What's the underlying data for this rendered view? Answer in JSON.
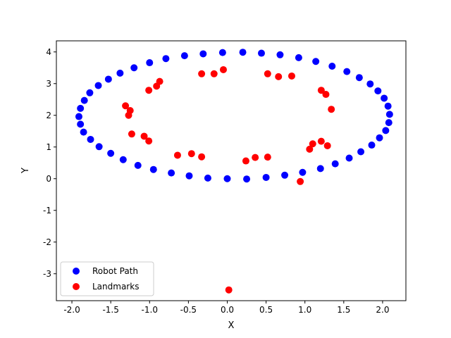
{
  "chart_data": {
    "type": "scatter",
    "title": "",
    "xlabel": "X",
    "ylabel": "Y",
    "xlim": [
      -2.2,
      2.3
    ],
    "ylim": [
      -3.85,
      4.35
    ],
    "xticks": [
      -2.0,
      -1.5,
      -1.0,
      -0.5,
      0.0,
      0.5,
      1.0,
      1.5,
      2.0
    ],
    "yticks": [
      -3,
      -2,
      -1,
      0,
      1,
      2,
      3,
      4
    ],
    "grid": false,
    "legend_position": "lower-left",
    "series": [
      {
        "name": "Robot Path",
        "color": "#0000ff",
        "points": [
          [
            0.0,
            0.0
          ],
          [
            0.25,
            -0.01
          ],
          [
            0.5,
            0.04
          ],
          [
            0.74,
            0.11
          ],
          [
            0.97,
            0.2
          ],
          [
            1.2,
            0.32
          ],
          [
            1.39,
            0.47
          ],
          [
            1.57,
            0.65
          ],
          [
            1.72,
            0.85
          ],
          [
            1.86,
            1.06
          ],
          [
            1.96,
            1.29
          ],
          [
            2.04,
            1.52
          ],
          [
            2.08,
            1.77
          ],
          [
            2.09,
            2.03
          ],
          [
            2.07,
            2.29
          ],
          [
            2.02,
            2.54
          ],
          [
            1.94,
            2.77
          ],
          [
            1.84,
            2.99
          ],
          [
            1.7,
            3.19
          ],
          [
            1.54,
            3.38
          ],
          [
            1.35,
            3.55
          ],
          [
            1.14,
            3.7
          ],
          [
            0.92,
            3.82
          ],
          [
            0.68,
            3.91
          ],
          [
            0.44,
            3.96
          ],
          [
            0.2,
            3.99
          ],
          [
            -0.06,
            3.98
          ],
          [
            -0.31,
            3.94
          ],
          [
            -0.55,
            3.88
          ],
          [
            -0.79,
            3.79
          ],
          [
            -1.0,
            3.66
          ],
          [
            -1.2,
            3.5
          ],
          [
            -1.38,
            3.33
          ],
          [
            -1.53,
            3.14
          ],
          [
            -1.66,
            2.94
          ],
          [
            -1.77,
            2.71
          ],
          [
            -1.84,
            2.47
          ],
          [
            -1.89,
            2.22
          ],
          [
            -1.91,
            1.96
          ],
          [
            -1.89,
            1.72
          ],
          [
            -1.85,
            1.47
          ],
          [
            -1.76,
            1.24
          ],
          [
            -1.65,
            1.01
          ],
          [
            -1.5,
            0.8
          ],
          [
            -1.34,
            0.6
          ],
          [
            -1.15,
            0.42
          ],
          [
            -0.95,
            0.29
          ],
          [
            -0.72,
            0.18
          ],
          [
            -0.49,
            0.09
          ],
          [
            -0.25,
            0.02
          ]
        ]
      },
      {
        "name": "Landmarks",
        "color": "#ff0000",
        "points": [
          [
            -0.33,
            3.31
          ],
          [
            -0.17,
            3.31
          ],
          [
            -0.05,
            3.44
          ],
          [
            0.52,
            3.31
          ],
          [
            0.66,
            3.22
          ],
          [
            0.83,
            3.24
          ],
          [
            -1.01,
            2.79
          ],
          [
            -0.91,
            2.92
          ],
          [
            -0.87,
            3.07
          ],
          [
            -1.31,
            2.3
          ],
          [
            -1.25,
            2.15
          ],
          [
            -1.27,
            2.0
          ],
          [
            -1.23,
            1.41
          ],
          [
            -1.07,
            1.34
          ],
          [
            -1.01,
            1.19
          ],
          [
            1.21,
            2.79
          ],
          [
            1.27,
            2.66
          ],
          [
            1.34,
            2.19
          ],
          [
            1.06,
            0.93
          ],
          [
            1.1,
            1.1
          ],
          [
            1.21,
            1.18
          ],
          [
            1.29,
            1.04
          ],
          [
            -0.64,
            0.74
          ],
          [
            -0.46,
            0.79
          ],
          [
            -0.33,
            0.69
          ],
          [
            0.24,
            0.56
          ],
          [
            0.36,
            0.67
          ],
          [
            0.52,
            0.68
          ],
          [
            0.94,
            -0.09
          ],
          [
            0.02,
            -3.51
          ]
        ]
      }
    ]
  }
}
